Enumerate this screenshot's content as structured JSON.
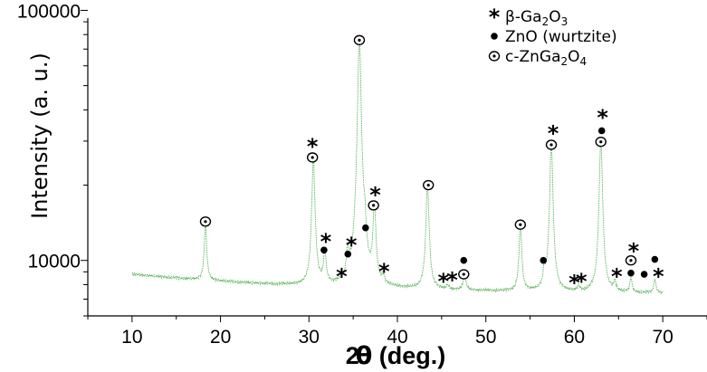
{
  "chart_data": {
    "type": "line",
    "xlabel_pre": "2",
    "xlabel_theta": "θ",
    "xlabel_post": " (deg.)",
    "ylabel": "Intensity (a. u.)",
    "y_scale": "log",
    "xlim": [
      5,
      75
    ],
    "ylim": [
      6000,
      110000
    ],
    "x_ticks": [
      10,
      20,
      30,
      40,
      50,
      60,
      70
    ],
    "y_tick_labels": [
      {
        "value": 10000,
        "label": "10000"
      },
      {
        "value": 100000,
        "label": "100000"
      }
    ],
    "grid": false,
    "line_color": "#3aa83a",
    "legend": {
      "placement": "top-right",
      "entries": [
        {
          "symbol": "star",
          "parts": [
            [
              "β-Ga",
              ""
            ],
            [
              "2",
              "sub"
            ],
            [
              "O",
              ""
            ],
            [
              "3",
              "sub"
            ]
          ]
        },
        {
          "symbol": "dot",
          "parts": [
            [
              "ZnO (wurtzite)",
              ""
            ]
          ]
        },
        {
          "symbol": "ring",
          "parts": [
            [
              "c-ZnGa",
              ""
            ],
            [
              "2",
              "sub"
            ],
            [
              "O",
              ""
            ],
            [
              "4",
              "sub"
            ]
          ]
        }
      ]
    },
    "baseline": [
      [
        10,
        8800
      ],
      [
        15,
        8500
      ],
      [
        20,
        8250
      ],
      [
        25,
        8050
      ],
      [
        30,
        7900
      ],
      [
        35,
        7800
      ],
      [
        40,
        7700
      ],
      [
        45,
        7620
      ],
      [
        50,
        7550
      ],
      [
        55,
        7500
      ],
      [
        60,
        7450
      ],
      [
        65,
        7420
      ],
      [
        70,
        7400
      ]
    ],
    "peaks": [
      {
        "x": 18.3,
        "y": 14300,
        "w": 0.14
      },
      {
        "x": 30.5,
        "y": 25500,
        "w": 0.18
      },
      {
        "x": 31.8,
        "y": 10700,
        "w": 0.16
      },
      {
        "x": 34.4,
        "y": 10100,
        "w": 0.16
      },
      {
        "x": 35.7,
        "y": 76000,
        "w": 0.2
      },
      {
        "x": 36.3,
        "y": 11500,
        "w": 0.16
      },
      {
        "x": 37.4,
        "y": 15800,
        "w": 0.18
      },
      {
        "x": 38.4,
        "y": 8300,
        "w": 0.16
      },
      {
        "x": 43.4,
        "y": 20300,
        "w": 0.18
      },
      {
        "x": 45.7,
        "y": 7900,
        "w": 0.15
      },
      {
        "x": 47.6,
        "y": 8900,
        "w": 0.15
      },
      {
        "x": 53.9,
        "y": 13900,
        "w": 0.16
      },
      {
        "x": 56.6,
        "y": 8800,
        "w": 0.14
      },
      {
        "x": 57.4,
        "y": 29500,
        "w": 0.18
      },
      {
        "x": 60.5,
        "y": 7800,
        "w": 0.14
      },
      {
        "x": 63.0,
        "y": 31000,
        "w": 0.18
      },
      {
        "x": 64.6,
        "y": 8100,
        "w": 0.14
      },
      {
        "x": 66.4,
        "y": 8500,
        "w": 0.14
      },
      {
        "x": 69.1,
        "y": 8400,
        "w": 0.14
      }
    ],
    "markers": [
      {
        "type": "ring",
        "x": 18.3,
        "y": 14300
      },
      {
        "type": "ring",
        "x": 30.4,
        "y": 25800
      },
      {
        "type": "star",
        "x": 30.4,
        "y": 28800
      },
      {
        "type": "dot",
        "x": 31.7,
        "y": 11000
      },
      {
        "type": "star",
        "x": 31.9,
        "y": 12000
      },
      {
        "type": "star",
        "x": 33.7,
        "y": 8700
      },
      {
        "type": "dot",
        "x": 34.4,
        "y": 10600
      },
      {
        "type": "star",
        "x": 34.8,
        "y": 11600
      },
      {
        "type": "ring",
        "x": 35.7,
        "y": 76000
      },
      {
        "type": "dot",
        "x": 36.4,
        "y": 13500
      },
      {
        "type": "ring",
        "x": 37.3,
        "y": 16600
      },
      {
        "type": "star",
        "x": 37.5,
        "y": 18400
      },
      {
        "type": "star",
        "x": 38.5,
        "y": 9100
      },
      {
        "type": "ring",
        "x": 43.5,
        "y": 20000
      },
      {
        "type": "star",
        "x": 45.2,
        "y": 8300
      },
      {
        "type": "star",
        "x": 46.2,
        "y": 8400
      },
      {
        "type": "dot",
        "x": 47.5,
        "y": 10000
      },
      {
        "type": "ring",
        "x": 47.5,
        "y": 8800
      },
      {
        "type": "ring",
        "x": 53.9,
        "y": 13900
      },
      {
        "type": "dot",
        "x": 56.5,
        "y": 10000
      },
      {
        "type": "ring",
        "x": 57.4,
        "y": 29000
      },
      {
        "type": "star",
        "x": 57.6,
        "y": 32500
      },
      {
        "type": "star",
        "x": 60.0,
        "y": 8200
      },
      {
        "type": "star",
        "x": 60.8,
        "y": 8300
      },
      {
        "type": "dot",
        "x": 63.1,
        "y": 33000
      },
      {
        "type": "ring",
        "x": 63.0,
        "y": 29800
      },
      {
        "type": "star",
        "x": 63.2,
        "y": 37500
      },
      {
        "type": "star",
        "x": 64.8,
        "y": 8700
      },
      {
        "type": "ring",
        "x": 66.4,
        "y": 10000
      },
      {
        "type": "star",
        "x": 66.7,
        "y": 11000
      },
      {
        "type": "dot",
        "x": 66.4,
        "y": 8900
      },
      {
        "type": "dot",
        "x": 67.9,
        "y": 8800
      },
      {
        "type": "dot",
        "x": 69.1,
        "y": 10100
      },
      {
        "type": "star",
        "x": 69.5,
        "y": 8700
      }
    ]
  }
}
